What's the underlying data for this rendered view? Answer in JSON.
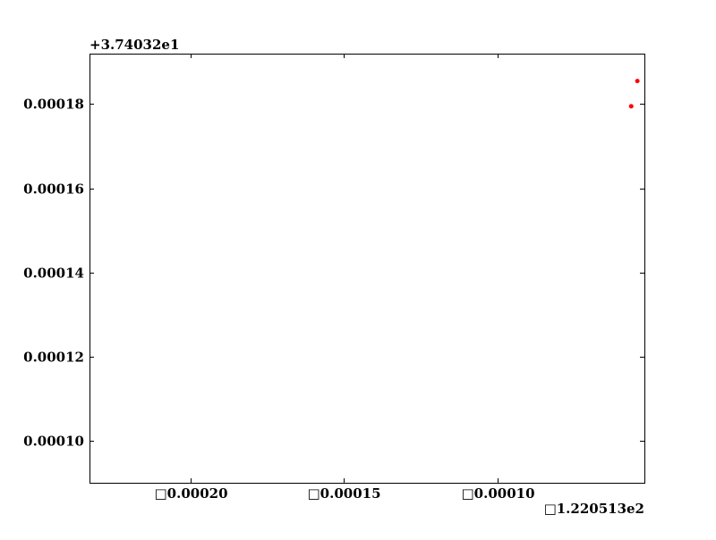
{
  "chart_data": {
    "type": "scatter",
    "title": "",
    "xlabel": "",
    "ylabel": "",
    "x_offset_label": "□1.220513e2",
    "y_offset_label": "+3.74032e1",
    "xlim": [
      -0.000233,
      -5.2e-05
    ],
    "ylim": [
      9e-05,
      0.000192
    ],
    "x_ticks": [
      -0.0002,
      -0.00015,
      -0.0001
    ],
    "x_tick_labels": [
      "□0.00020",
      "□0.00015",
      "□0.00010"
    ],
    "y_ticks": [
      0.0001,
      0.00012,
      0.00014,
      0.00016,
      0.00018
    ],
    "y_tick_labels": [
      "0.00010",
      "0.00012",
      "0.00014",
      "0.00016",
      "0.00018"
    ],
    "grid": false,
    "series": [
      {
        "name": "points",
        "color": "#ff0000",
        "points": [
          {
            "x": -5.63e-05,
            "y": 0.0001795
          },
          {
            "x": -5.43e-05,
            "y": 0.0001855
          }
        ]
      }
    ]
  }
}
